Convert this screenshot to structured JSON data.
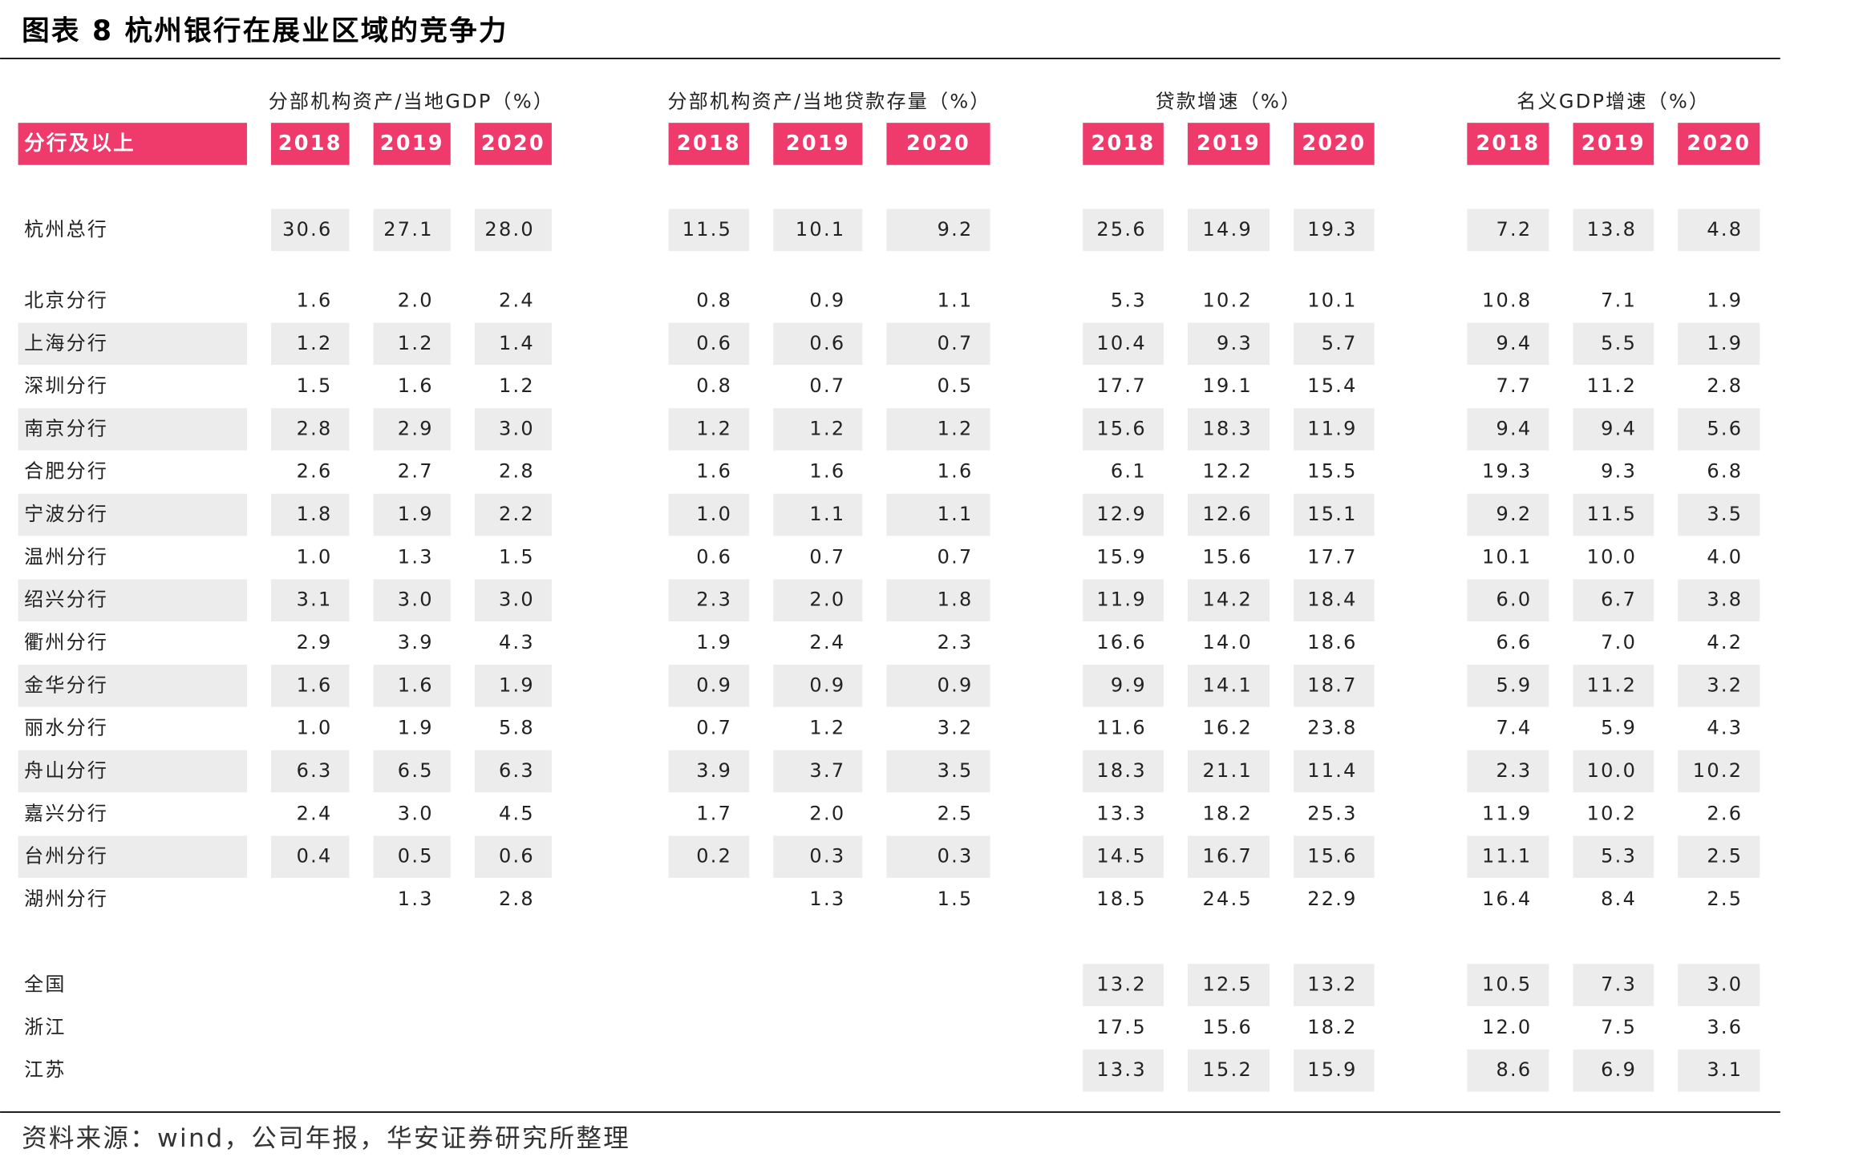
{
  "title": "图表 8 杭州银行在展业区域的竞争力",
  "table": {
    "header_label": "分行及以上",
    "groups": [
      {
        "label": "分部机构资产/当地GDP（%）",
        "years": [
          "2018",
          "2019",
          "2020"
        ]
      },
      {
        "label": "分部机构资产/当地贷款存量（%）",
        "years": [
          "2018",
          "2019",
          "2020"
        ]
      },
      {
        "label": "贷款增速（%）",
        "years": [
          "2018",
          "2019",
          "2020"
        ]
      },
      {
        "label": "名义GDP增速（%）",
        "years": [
          "2018",
          "2019",
          "2020"
        ]
      }
    ],
    "rows": [
      {
        "name": "杭州总行",
        "values": [
          "30.6",
          "27.1",
          "28.0",
          "11.5",
          "10.1",
          "9.2",
          "25.6",
          "14.9",
          "19.3",
          "7.2",
          "13.8",
          "4.8"
        ]
      },
      {
        "name": "北京分行",
        "values": [
          "1.6",
          "2.0",
          "2.4",
          "0.8",
          "0.9",
          "1.1",
          "5.3",
          "10.2",
          "10.1",
          "10.8",
          "7.1",
          "1.9"
        ]
      },
      {
        "name": "上海分行",
        "values": [
          "1.2",
          "1.2",
          "1.4",
          "0.6",
          "0.6",
          "0.7",
          "10.4",
          "9.3",
          "5.7",
          "9.4",
          "5.5",
          "1.9"
        ]
      },
      {
        "name": "深圳分行",
        "values": [
          "1.5",
          "1.6",
          "1.2",
          "0.8",
          "0.7",
          "0.5",
          "17.7",
          "19.1",
          "15.4",
          "7.7",
          "11.2",
          "2.8"
        ]
      },
      {
        "name": "南京分行",
        "values": [
          "2.8",
          "2.9",
          "3.0",
          "1.2",
          "1.2",
          "1.2",
          "15.6",
          "18.3",
          "11.9",
          "9.4",
          "9.4",
          "5.6"
        ]
      },
      {
        "name": "合肥分行",
        "values": [
          "2.6",
          "2.7",
          "2.8",
          "1.6",
          "1.6",
          "1.6",
          "6.1",
          "12.2",
          "15.5",
          "19.3",
          "9.3",
          "6.8"
        ]
      },
      {
        "name": "宁波分行",
        "values": [
          "1.8",
          "1.9",
          "2.2",
          "1.0",
          "1.1",
          "1.1",
          "12.9",
          "12.6",
          "15.1",
          "9.2",
          "11.5",
          "3.5"
        ]
      },
      {
        "name": "温州分行",
        "values": [
          "1.0",
          "1.3",
          "1.5",
          "0.6",
          "0.7",
          "0.7",
          "15.9",
          "15.6",
          "17.7",
          "10.1",
          "10.0",
          "4.0"
        ]
      },
      {
        "name": "绍兴分行",
        "values": [
          "3.1",
          "3.0",
          "3.0",
          "2.3",
          "2.0",
          "1.8",
          "11.9",
          "14.2",
          "18.4",
          "6.0",
          "6.7",
          "3.8"
        ]
      },
      {
        "name": "衢州分行",
        "values": [
          "2.9",
          "3.9",
          "4.3",
          "1.9",
          "2.4",
          "2.3",
          "16.6",
          "14.0",
          "18.6",
          "6.6",
          "7.0",
          "4.2"
        ]
      },
      {
        "name": "金华分行",
        "values": [
          "1.6",
          "1.6",
          "1.9",
          "0.9",
          "0.9",
          "0.9",
          "9.9",
          "14.1",
          "18.7",
          "5.9",
          "11.2",
          "3.2"
        ]
      },
      {
        "name": "丽水分行",
        "values": [
          "1.0",
          "1.9",
          "5.8",
          "0.7",
          "1.2",
          "3.2",
          "11.6",
          "16.2",
          "23.8",
          "7.4",
          "5.9",
          "4.3"
        ]
      },
      {
        "name": "舟山分行",
        "values": [
          "6.3",
          "6.5",
          "6.3",
          "3.9",
          "3.7",
          "3.5",
          "18.3",
          "21.1",
          "11.4",
          "2.3",
          "10.0",
          "10.2"
        ]
      },
      {
        "name": "嘉兴分行",
        "values": [
          "2.4",
          "3.0",
          "4.5",
          "1.7",
          "2.0",
          "2.5",
          "13.3",
          "18.2",
          "25.3",
          "11.9",
          "10.2",
          "2.6"
        ]
      },
      {
        "name": "台州分行",
        "values": [
          "0.4",
          "0.5",
          "0.6",
          "0.2",
          "0.3",
          "0.3",
          "14.5",
          "16.7",
          "15.6",
          "11.1",
          "5.3",
          "2.5"
        ]
      },
      {
        "name": "湖州分行",
        "values": [
          null,
          "1.3",
          "2.8",
          null,
          "1.3",
          "1.5",
          "18.5",
          "24.5",
          "22.9",
          "16.4",
          "8.4",
          "2.5"
        ]
      }
    ],
    "summary_rows": [
      {
        "name": "全国",
        "values": [
          "13.2",
          "12.5",
          "13.2",
          "10.5",
          "7.3",
          "3.0"
        ]
      },
      {
        "name": "浙江",
        "values": [
          "17.5",
          "15.6",
          "18.2",
          "12.0",
          "7.5",
          "3.6"
        ]
      },
      {
        "name": "江苏",
        "values": [
          "13.3",
          "15.2",
          "15.9",
          "8.6",
          "6.9",
          "3.1"
        ]
      }
    ]
  },
  "source": "资料来源：wind，公司年报，华安证券研究所整理"
}
